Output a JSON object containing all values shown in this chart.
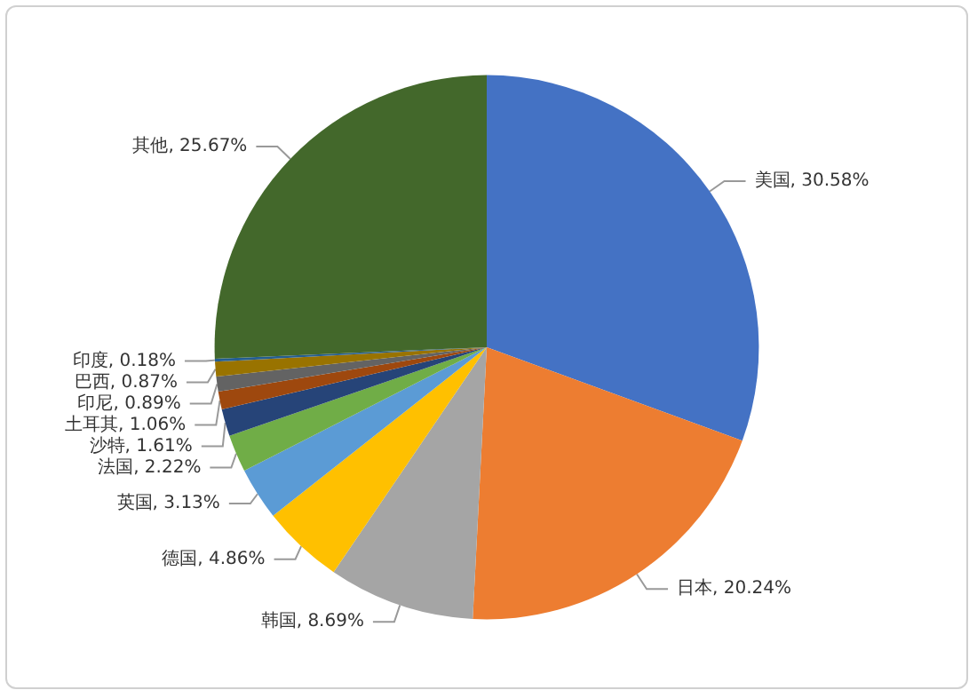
{
  "chart_data": {
    "type": "pie",
    "categories": [
      "美国",
      "日本",
      "韩国",
      "德国",
      "英国",
      "法国",
      "沙特",
      "土耳其",
      "印尼",
      "巴西",
      "印度",
      "其他"
    ],
    "values": [
      30.58,
      20.24,
      8.69,
      4.86,
      3.13,
      2.22,
      1.61,
      1.06,
      0.89,
      0.87,
      0.18,
      25.67
    ],
    "value_labels": [
      "30.58%",
      "20.24%",
      "8.69%",
      "4.86%",
      "3.13%",
      "2.22%",
      "1.61%",
      "1.06%",
      "0.89%",
      "0.87%",
      "0.18%",
      "25.67%"
    ],
    "colors": [
      "#4472c4",
      "#ed7d31",
      "#a5a5a5",
      "#ffc000",
      "#5b9bd5",
      "#70ad47",
      "#264478",
      "#9e480e",
      "#636363",
      "#997300",
      "#255e91",
      "#43682b"
    ],
    "legend": false
  }
}
